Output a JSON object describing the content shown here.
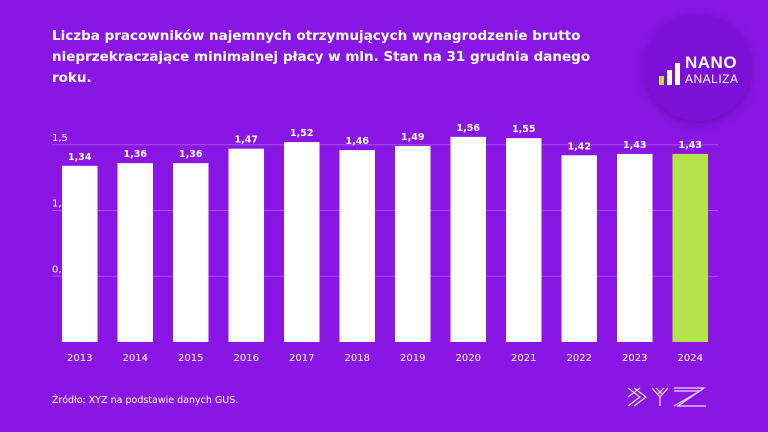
{
  "title": "Liczba pracowników najemnych otrzymujących wynagrodzenie brutto nieprzekraczające minimalnej płacy w mln. Stan na 31 grudnia danego roku.",
  "logo": {
    "nano": "NANO",
    "analiza": "ANALIZA"
  },
  "source": "Źródło: XYZ na podstawie danych GUS.",
  "brand_logo_text": "XYZ",
  "colors": {
    "background": "#8a16e6",
    "bar": "#ffffff",
    "highlight_bar": "#b4e34a",
    "gridline": "#a650ee",
    "text": "#ffffff"
  },
  "chart_data": {
    "type": "bar",
    "categories": [
      "2013",
      "2014",
      "2015",
      "2016",
      "2017",
      "2018",
      "2019",
      "2020",
      "2021",
      "2022",
      "2023",
      "2024"
    ],
    "values": [
      1.34,
      1.36,
      1.36,
      1.47,
      1.52,
      1.46,
      1.49,
      1.56,
      1.55,
      1.42,
      1.43,
      1.43
    ],
    "value_labels": [
      "1,34",
      "1,36",
      "1,36",
      "1,47",
      "1,52",
      "1,46",
      "1,49",
      "1,56",
      "1,55",
      "1,42",
      "1,43",
      "1,43"
    ],
    "ylim": [
      0,
      1.5
    ],
    "yticks": [
      0.5,
      1.0,
      1.5
    ],
    "ytick_labels": [
      "0,5",
      "1,0",
      "1,5"
    ],
    "highlight_index": 11,
    "grid": true,
    "title": "",
    "xlabel": "",
    "ylabel": ""
  }
}
